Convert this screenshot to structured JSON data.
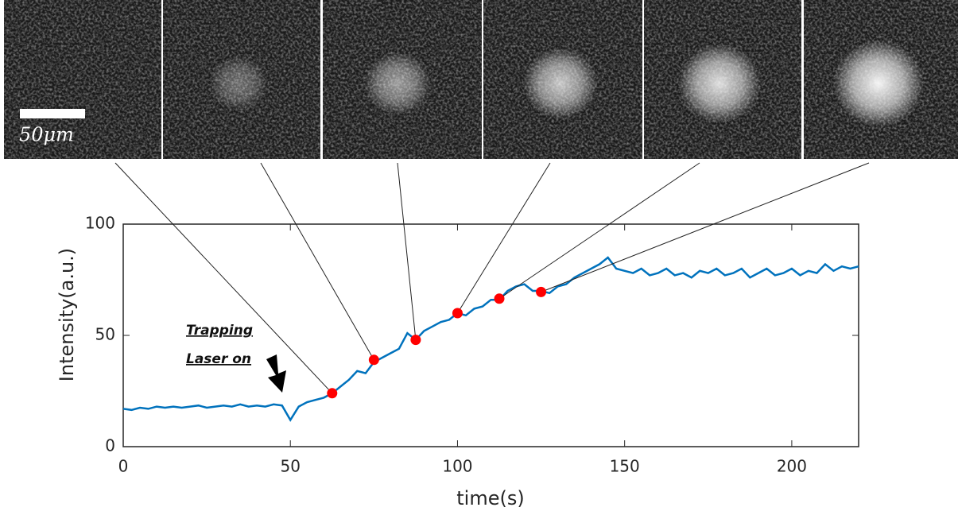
{
  "chart_data": {
    "type": "line",
    "x_label": "time(s)",
    "y_label": "Intensity(a.u.)",
    "annotation_lines": [
      "Trapping",
      "Laser on"
    ],
    "scale_bar_label": "50μm",
    "x": [
      0,
      2.5,
      5,
      7.5,
      10,
      12.5,
      15,
      17.5,
      20,
      22.5,
      25,
      27.5,
      30,
      32.5,
      35,
      37.5,
      40,
      42.5,
      45,
      47.5,
      50,
      52.5,
      55,
      57.5,
      60,
      62.5,
      65,
      67.5,
      70,
      72.5,
      75,
      77.5,
      80,
      82.5,
      85,
      87.5,
      90,
      92.5,
      95,
      97.5,
      100,
      102.5,
      105,
      107.5,
      110,
      112.5,
      115,
      117.5,
      120,
      122.5,
      125,
      127.5,
      130,
      132.5,
      135,
      137.5,
      140,
      142.5,
      145,
      147.5,
      150,
      152.5,
      155,
      157.5,
      160,
      162.5,
      165,
      167.5,
      170,
      172.5,
      175,
      177.5,
      180,
      182.5,
      185,
      187.5,
      190,
      192.5,
      195,
      197.5,
      200,
      202.5,
      205,
      207.5,
      210,
      212.5,
      215,
      217.5,
      220
    ],
    "series": [
      {
        "color": "#0072bd",
        "values": [
          17,
          16.5,
          17.5,
          17,
          18,
          17.5,
          18,
          17.5,
          18,
          18.5,
          17.5,
          18,
          18.5,
          18,
          19,
          18,
          18.5,
          18,
          19,
          18.5,
          12,
          18,
          20,
          21,
          22,
          24,
          27,
          30,
          34,
          33,
          38,
          40,
          42,
          44,
          51,
          48,
          52,
          54,
          56,
          57,
          60,
          59,
          62,
          63,
          66,
          66,
          70,
          72,
          73,
          70,
          70,
          69,
          72,
          73,
          76,
          78,
          80,
          82,
          85,
          80,
          79,
          78,
          80,
          77,
          78,
          80,
          77,
          78,
          76,
          79,
          78,
          80,
          77,
          78,
          80,
          76,
          78,
          80,
          77,
          78,
          80,
          77,
          79,
          78,
          82,
          79,
          81,
          80,
          81
        ]
      }
    ],
    "markers": {
      "color": "#ff0000",
      "x": [
        62.5,
        75,
        87.5,
        100,
        112.5,
        125
      ],
      "values": [
        24,
        39,
        48,
        60,
        66.5,
        69.5
      ]
    },
    "xlim": [
      0,
      220
    ],
    "ylim": [
      0,
      100
    ],
    "xticks": [
      0,
      50,
      100,
      150,
      200
    ],
    "yticks": [
      0,
      50,
      100
    ],
    "grid": false
  }
}
